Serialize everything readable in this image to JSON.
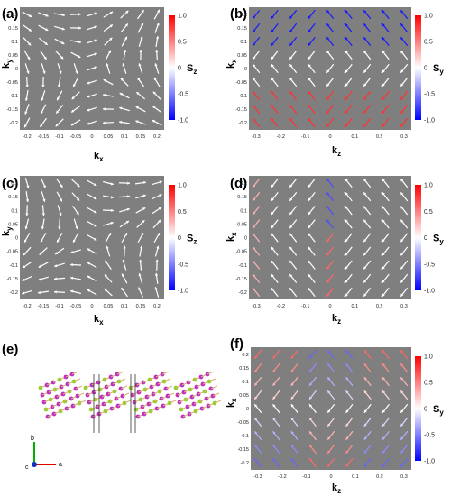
{
  "colors": {
    "plot_bg": "#7f7f7f",
    "arrow_neutral": "#ffffff",
    "positive": "#ff0000",
    "negative": "#0000ff",
    "zero": "#ffffff"
  },
  "panels": [
    {
      "label": "(a)",
      "xlabel": "k",
      "xsub": "x",
      "ylabel": "k",
      "ysub": "y",
      "cbar": "S",
      "cbsub": "z",
      "xticks": [
        "-0.2",
        "-0.15",
        "-0.1",
        "-0.05",
        "0",
        "0.05",
        "0.1",
        "0.15",
        "0.2"
      ],
      "yticks": [
        "0.2",
        "0.15",
        "0.1",
        "0.05",
        "0",
        "-0.05",
        "-0.1",
        "-0.15",
        "-0.2"
      ],
      "cbticks": [
        "1.0",
        "0.5",
        "0",
        "-0.5",
        "-1.0"
      ]
    },
    {
      "label": "(b)",
      "xlabel": "k",
      "xsub": "z",
      "ylabel": "k",
      "ysub": "x",
      "cbar": "S",
      "cbsub": "y",
      "xticks": [
        "-0.3",
        "-0.2",
        "-0.1",
        "0",
        "0.1",
        "0.2",
        "0.3"
      ],
      "yticks": [
        "0.2",
        "0.15",
        "0.1",
        "0.05",
        "0",
        "-0.05",
        "-0.1",
        "-0.15",
        "-0.2"
      ],
      "cbticks": [
        "1.0",
        "0.5",
        "0",
        "-0.5",
        "-1.0"
      ]
    },
    {
      "label": "(c)",
      "xlabel": "k",
      "xsub": "x",
      "ylabel": "k",
      "ysub": "y",
      "cbar": "S",
      "cbsub": "z",
      "xticks": [
        "-0.2",
        "-0.15",
        "-0.1",
        "-0.05",
        "0",
        "0.05",
        "0.1",
        "0.15",
        "0.2"
      ],
      "yticks": [
        "0.2",
        "0.15",
        "0.1",
        "0.05",
        "0",
        "-0.05",
        "-0.1",
        "-0.15",
        "-0.2"
      ],
      "cbticks": [
        "1.0",
        "0.5",
        "0",
        "-0.5",
        "-1.0"
      ]
    },
    {
      "label": "(d)",
      "xlabel": "k",
      "xsub": "z",
      "ylabel": "k",
      "ysub": "x",
      "cbar": "S",
      "cbsub": "y",
      "xticks": [
        "-0.3",
        "-0.2",
        "-0.1",
        "0",
        "0.1",
        "0.2",
        "0.3"
      ],
      "yticks": [
        "0.2",
        "0.15",
        "0.1",
        "0.05",
        "0",
        "-0.05",
        "-0.1",
        "-0.15",
        "-0.2"
      ],
      "cbticks": [
        "1.0",
        "0.5",
        "0",
        "-0.5",
        "-1.0"
      ]
    },
    {
      "label": "(e)",
      "axes": {
        "b": "b",
        "a": "a",
        "c": "c"
      }
    },
    {
      "label": "(f)",
      "xlabel": "k",
      "xsub": "z",
      "ylabel": "k",
      "ysub": "x",
      "cbar": "S",
      "cbsub": "y",
      "xticks": [
        "-0.3",
        "-0.2",
        "-0.1",
        "0",
        "0.1",
        "0.2",
        "0.3"
      ],
      "yticks": [
        "0.2",
        "0.15",
        "0.1",
        "0.05",
        "0",
        "-0.05",
        "-0.1",
        "-0.15",
        "-0.2"
      ],
      "cbticks": [
        "1.0",
        "0.5",
        "0",
        "-0.5",
        "-1.0"
      ]
    }
  ]
}
